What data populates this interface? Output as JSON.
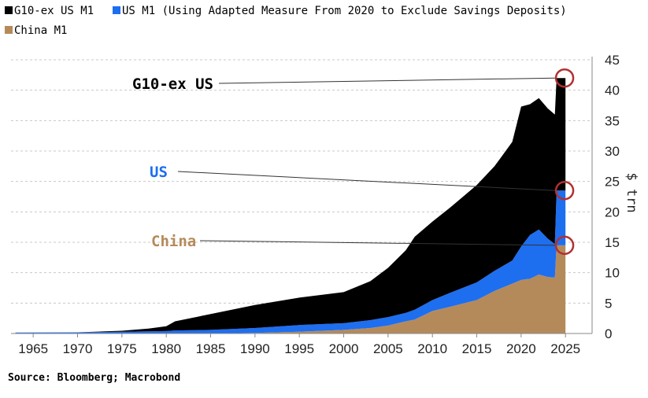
{
  "legend": [
    {
      "label": "G10-ex US M1",
      "color": "#000000"
    },
    {
      "label": "US M1 (Using Adapted Measure From 2020 to Exclude Savings Deposits)",
      "color": "#1e6ef0"
    },
    {
      "label": "China M1",
      "color": "#b58a5a"
    }
  ],
  "source": "Source: Bloomberg; Macrobond",
  "chart_data": {
    "type": "area",
    "stacked": true,
    "x": [
      1963,
      1970,
      1975,
      1978,
      1980,
      1981,
      1985,
      1990,
      1995,
      2000,
      2003,
      2005,
      2007,
      2008,
      2010,
      2012,
      2015,
      2017,
      2019,
      2020,
      2021,
      2022,
      2023,
      2023.8,
      2024,
      2025
    ],
    "series": [
      {
        "name": "China M1",
        "color": "#b58a5a",
        "values": [
          0,
          0,
          0,
          0,
          0,
          0,
          0,
          0.1,
          0.3,
          0.6,
          0.9,
          1.3,
          2.0,
          2.3,
          3.7,
          4.4,
          5.5,
          7.0,
          8.2,
          8.8,
          9.0,
          9.7,
          9.3,
          9.2,
          14.5,
          14.5
        ]
      },
      {
        "name": "US M1 (Using Adapted Measure From 2020 to Exclude Savings Deposits)",
        "color": "#1e6ef0",
        "values": [
          0.15,
          0.2,
          0.3,
          0.35,
          0.4,
          0.5,
          0.6,
          0.8,
          1.1,
          1.1,
          1.3,
          1.4,
          1.4,
          1.6,
          1.8,
          2.3,
          2.9,
          3.3,
          3.8,
          5.5,
          7.2,
          7.4,
          6.3,
          5.5,
          9.0,
          9.0
        ]
      },
      {
        "name": "G10-ex US M1",
        "color": "#000000",
        "values": [
          0,
          0,
          0.15,
          0.45,
          0.8,
          1.5,
          2.6,
          3.8,
          4.5,
          5.1,
          6.4,
          8.1,
          10.3,
          12.0,
          12.9,
          14.0,
          16.0,
          17.2,
          19.5,
          23.0,
          21.5,
          21.6,
          21.4,
          21.3,
          18.5,
          18.5
        ]
      }
    ],
    "end_values": {
      "G10-ex US": 42,
      "US": 23.5,
      "China": 14.5
    },
    "annotations": [
      {
        "label": "G10-ex US",
        "color": "#000000",
        "y": 42
      },
      {
        "label": "US",
        "color": "#1e6ef0",
        "y": 23.5
      },
      {
        "label": "China",
        "color": "#b58a5a",
        "y": 14.5
      }
    ],
    "ylabel": "$ trn",
    "ylim": [
      0,
      45
    ],
    "yticks": [
      0,
      5,
      10,
      15,
      20,
      25,
      30,
      35,
      40,
      45
    ],
    "xlim": [
      1962.5,
      2028
    ],
    "xticks": [
      1965,
      1970,
      1975,
      1980,
      1985,
      1990,
      1995,
      2000,
      2005,
      2010,
      2015,
      2020,
      2025
    ],
    "y_axis_position": "right",
    "grid": true,
    "legend_position": "top-left"
  }
}
